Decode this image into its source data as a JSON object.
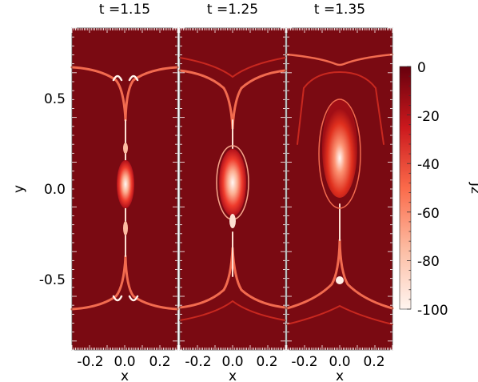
{
  "chart_data": {
    "type": "heatmap",
    "panels": [
      {
        "title": "t =1.15",
        "xlabel": "x",
        "x_ticks": [
          "-0.2",
          "0.0",
          "0.2"
        ],
        "y_ticks": [
          "0.5",
          "0.0",
          "-0.5"
        ],
        "ylabel": "y"
      },
      {
        "title": "t =1.25",
        "xlabel": "x",
        "x_ticks": [
          "-0.2",
          "0.0",
          "0.2"
        ]
      },
      {
        "title": "t =1.35",
        "xlabel": "x",
        "x_ticks": [
          "-0.2",
          "0.0",
          "0.2"
        ]
      }
    ],
    "xlim": [
      -0.3,
      0.3
    ],
    "ylim": [
      -0.9,
      0.9
    ],
    "colorbar": {
      "label": "Jz",
      "ticks": [
        "0",
        "-20",
        "-40",
        "-60",
        "-80",
        "-100"
      ],
      "range": [
        -100,
        0
      ],
      "colors": [
        "#fff5f0",
        "#fcbba1",
        "#fb6a4a",
        "#cb181d",
        "#67000d"
      ]
    },
    "background_color": "#7a0a12"
  }
}
